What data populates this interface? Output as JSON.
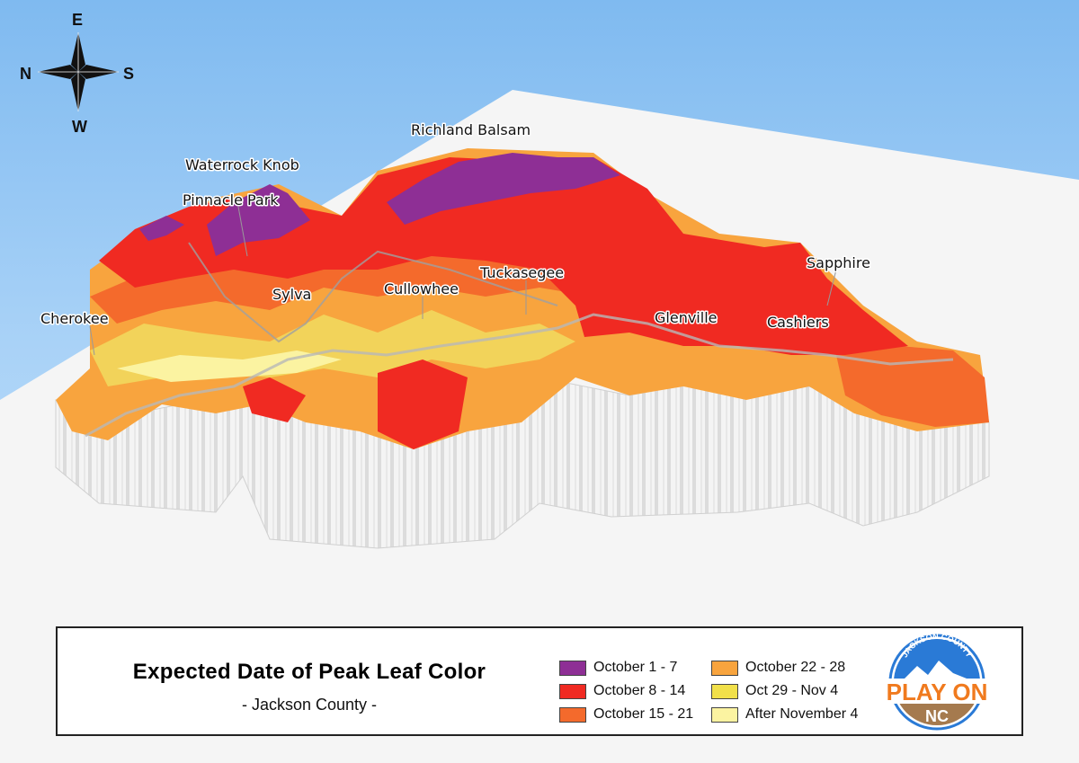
{
  "compass": {
    "north": "N",
    "south": "S",
    "east": "E",
    "west": "W"
  },
  "places": {
    "richland_balsam": "Richland Balsam",
    "waterrock_knob": "Waterrock Knob",
    "pinnacle_park": "Pinnacle Park",
    "cherokee": "Cherokee",
    "sylva": "Sylva",
    "cullowhee": "Cullowhee",
    "tuckasegee": "Tuckasegee",
    "sapphire": "Sapphire",
    "glenville": "Glenville",
    "cashiers": "Cashiers"
  },
  "legend": {
    "title": "Expected Date of Peak Leaf Color",
    "subtitle": "- Jackson County -",
    "items": [
      {
        "label": "October 1 - 7",
        "color": "#8e2f95"
      },
      {
        "label": "October 8 - 14",
        "color": "#f02a22"
      },
      {
        "label": "October 15 - 21",
        "color": "#f46a2c"
      },
      {
        "label": "October 22 - 28",
        "color": "#f8a43e"
      },
      {
        "label": "Oct 29 - Nov 4",
        "color": "#f1e04a"
      },
      {
        "label": "After November 4",
        "color": "#fbf3a1"
      }
    ]
  },
  "logo": {
    "top_text": "JACKSON COUNTY",
    "main_text": "PLAY ON",
    "bottom_text": "NC",
    "colors": {
      "blue": "#2a7ad6",
      "orange": "#f07a1e",
      "brown": "#a57a4e"
    }
  }
}
